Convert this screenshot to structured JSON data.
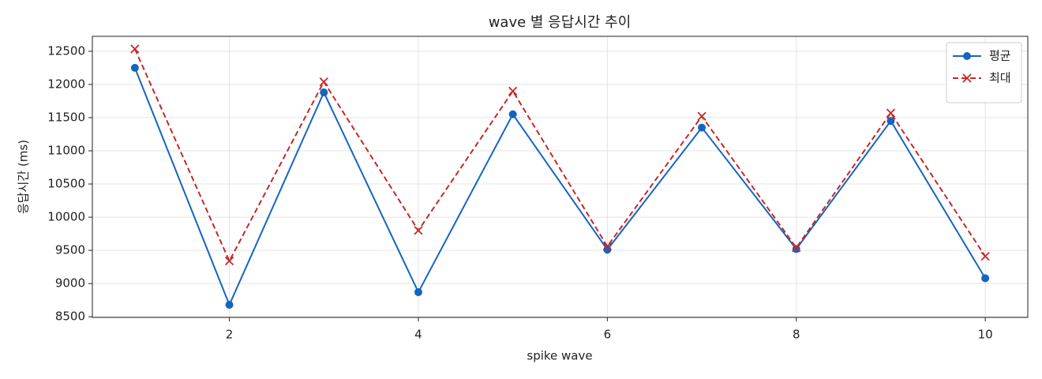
{
  "chart_data": {
    "type": "line",
    "title": "wave 별 응답시간 추이",
    "xlabel": "spike wave",
    "ylabel": "응답시간 (ms)",
    "x": [
      1,
      2,
      3,
      4,
      5,
      6,
      7,
      8,
      9,
      10
    ],
    "series": [
      {
        "name": "평균",
        "color": "#1565c0",
        "marker": "circle",
        "dash": "solid",
        "values": [
          12250,
          8680,
          11880,
          8870,
          11550,
          9510,
          11350,
          9520,
          11450,
          9080
        ]
      },
      {
        "name": "최대",
        "color": "#c62828",
        "marker": "x",
        "dash": "dashed",
        "values": [
          12535,
          9340,
          12040,
          9800,
          11900,
          9560,
          11520,
          9540,
          11570,
          9410
        ]
      }
    ],
    "xlim": [
      0.55,
      10.45
    ],
    "xticks": [
      2,
      4,
      6,
      8,
      10
    ],
    "ylim": [
      8490,
      12725
    ],
    "yticks": [
      8500,
      9000,
      9500,
      10000,
      10500,
      11000,
      11500,
      12000,
      12500
    ],
    "grid": true,
    "legend": "upper right"
  }
}
